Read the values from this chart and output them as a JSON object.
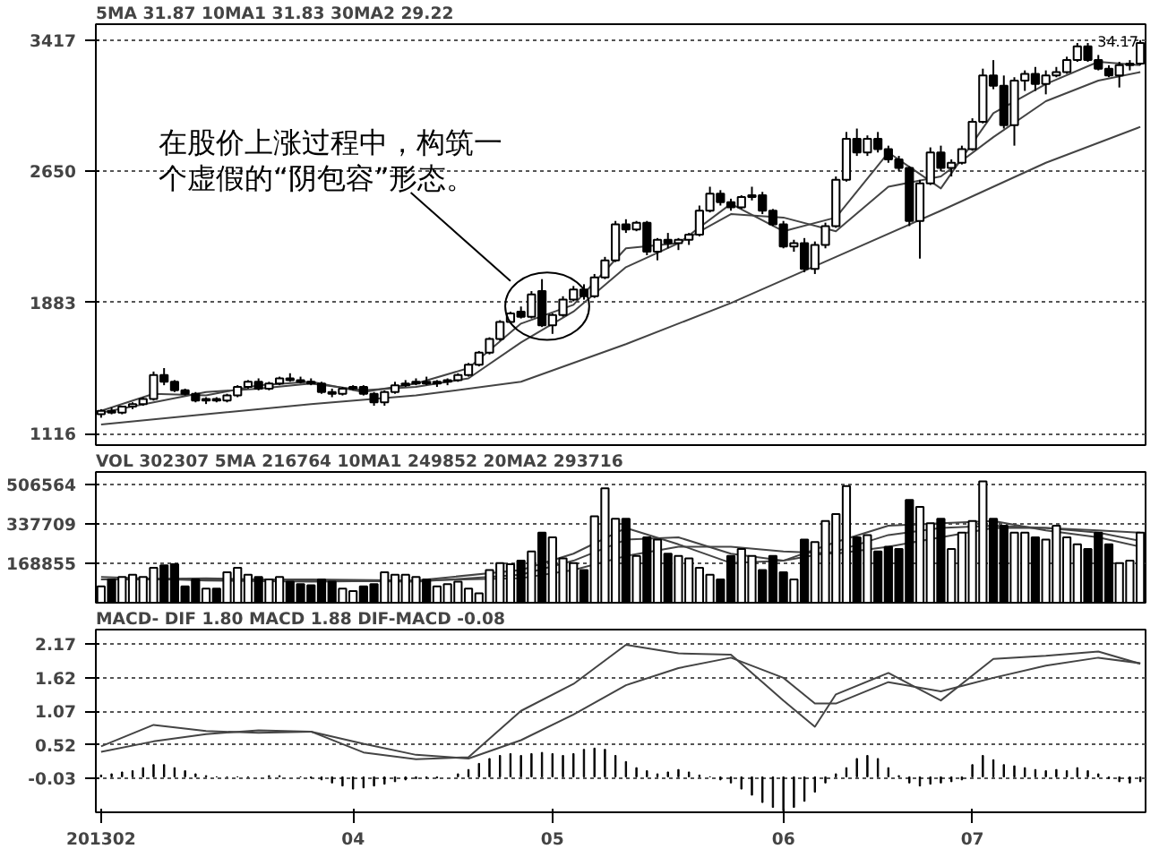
{
  "chart_data": [
    {
      "type": "candlestick",
      "title": "5MA 31.87  10MA1 31.83  30MA2 29.22",
      "categories": [
        "201302",
        null,
        null,
        null,
        null,
        null,
        null,
        null,
        null,
        null,
        null,
        null,
        null,
        null,
        null,
        null,
        null,
        null,
        null,
        null,
        null,
        null,
        null,
        null,
        "04",
        null,
        null,
        null,
        null,
        null,
        null,
        null,
        null,
        null,
        null,
        null,
        null,
        null,
        null,
        null,
        null,
        null,
        null,
        "05",
        null,
        null,
        null,
        null,
        null,
        null,
        null,
        null,
        null,
        null,
        null,
        null,
        null,
        null,
        null,
        null,
        null,
        null,
        null,
        null,
        null,
        "06",
        null,
        null,
        null,
        null,
        null,
        null,
        null,
        null,
        null,
        null,
        null,
        null,
        null,
        null,
        null,
        null,
        null,
        "07",
        null,
        null,
        null,
        null,
        null,
        null,
        null,
        null,
        null,
        null,
        null,
        null,
        null,
        null,
        null,
        null
      ],
      "ylim": [
        1050,
        3510
      ],
      "yticks": [
        1116,
        1883,
        2650,
        3417
      ],
      "grid": "y",
      "tick_labels": "y",
      "ohlc": [
        [
          1230,
          1260,
          1210,
          1250
        ],
        [
          1250,
          1270,
          1230,
          1240
        ],
        [
          1240,
          1280,
          1230,
          1275
        ],
        [
          1275,
          1300,
          1260,
          1290
        ],
        [
          1290,
          1330,
          1280,
          1320
        ],
        [
          1320,
          1480,
          1310,
          1460
        ],
        [
          1460,
          1500,
          1400,
          1420
        ],
        [
          1420,
          1430,
          1360,
          1370
        ],
        [
          1370,
          1380,
          1340,
          1350
        ],
        [
          1350,
          1360,
          1300,
          1310
        ],
        [
          1310,
          1330,
          1290,
          1320
        ],
        [
          1320,
          1330,
          1300,
          1310
        ],
        [
          1310,
          1350,
          1300,
          1340
        ],
        [
          1340,
          1400,
          1330,
          1390
        ],
        [
          1390,
          1430,
          1380,
          1420
        ],
        [
          1420,
          1440,
          1370,
          1380
        ],
        [
          1380,
          1420,
          1370,
          1410
        ],
        [
          1410,
          1450,
          1400,
          1440
        ],
        [
          1440,
          1470,
          1420,
          1430
        ],
        [
          1430,
          1450,
          1410,
          1420
        ],
        [
          1420,
          1440,
          1400,
          1410
        ],
        [
          1410,
          1420,
          1350,
          1360
        ],
        [
          1360,
          1380,
          1330,
          1350
        ],
        [
          1350,
          1390,
          1340,
          1380
        ],
        [
          1380,
          1400,
          1370,
          1390
        ],
        [
          1390,
          1400,
          1340,
          1350
        ],
        [
          1350,
          1360,
          1280,
          1300
        ],
        [
          1300,
          1370,
          1280,
          1360
        ],
        [
          1360,
          1420,
          1350,
          1400
        ],
        [
          1400,
          1430,
          1390,
          1410
        ],
        [
          1410,
          1440,
          1400,
          1420
        ],
        [
          1420,
          1450,
          1400,
          1410
        ],
        [
          1410,
          1430,
          1390,
          1420
        ],
        [
          1420,
          1440,
          1400,
          1430
        ],
        [
          1430,
          1470,
          1420,
          1460
        ],
        [
          1460,
          1530,
          1450,
          1520
        ],
        [
          1520,
          1600,
          1510,
          1590
        ],
        [
          1590,
          1680,
          1580,
          1670
        ],
        [
          1670,
          1780,
          1660,
          1770
        ],
        [
          1770,
          1830,
          1760,
          1820
        ],
        [
          1830,
          1860,
          1790,
          1800
        ],
        [
          1800,
          1950,
          1790,
          1930
        ],
        [
          1950,
          2020,
          1740,
          1750
        ],
        [
          1750,
          1820,
          1700,
          1810
        ],
        [
          1810,
          1920,
          1800,
          1900
        ],
        [
          1900,
          1980,
          1890,
          1960
        ],
        [
          1960,
          1990,
          1900,
          1920
        ],
        [
          1920,
          2050,
          1910,
          2030
        ],
        [
          2030,
          2150,
          2020,
          2130
        ],
        [
          2130,
          2360,
          2120,
          2340
        ],
        [
          2340,
          2370,
          2290,
          2310
        ],
        [
          2310,
          2360,
          2300,
          2350
        ],
        [
          2350,
          2360,
          2160,
          2180
        ],
        [
          2180,
          2260,
          2130,
          2250
        ],
        [
          2250,
          2290,
          2200,
          2230
        ],
        [
          2230,
          2260,
          2190,
          2250
        ],
        [
          2250,
          2290,
          2220,
          2280
        ],
        [
          2280,
          2450,
          2270,
          2420
        ],
        [
          2420,
          2560,
          2410,
          2520
        ],
        [
          2520,
          2540,
          2450,
          2470
        ],
        [
          2470,
          2490,
          2420,
          2440
        ],
        [
          2440,
          2510,
          2430,
          2500
        ],
        [
          2500,
          2560,
          2480,
          2510
        ],
        [
          2510,
          2530,
          2400,
          2420
        ],
        [
          2420,
          2430,
          2330,
          2340
        ],
        [
          2340,
          2360,
          2200,
          2210
        ],
        [
          2210,
          2250,
          2180,
          2230
        ],
        [
          2230,
          2260,
          2060,
          2080
        ],
        [
          2080,
          2240,
          2050,
          2220
        ],
        [
          2220,
          2350,
          2200,
          2330
        ],
        [
          2330,
          2620,
          2320,
          2600
        ],
        [
          2600,
          2880,
          2590,
          2840
        ],
        [
          2840,
          2900,
          2740,
          2760
        ],
        [
          2760,
          2860,
          2740,
          2840
        ],
        [
          2840,
          2880,
          2760,
          2780
        ],
        [
          2780,
          2800,
          2700,
          2720
        ],
        [
          2720,
          2740,
          2650,
          2670
        ],
        [
          2670,
          2680,
          2330,
          2360
        ],
        [
          2360,
          2600,
          2140,
          2580
        ],
        [
          2580,
          2790,
          2570,
          2760
        ],
        [
          2760,
          2800,
          2650,
          2670
        ],
        [
          2670,
          2720,
          2620,
          2700
        ],
        [
          2700,
          2800,
          2690,
          2780
        ],
        [
          2780,
          2960,
          2770,
          2940
        ],
        [
          2940,
          3250,
          2930,
          3210
        ],
        [
          3210,
          3300,
          3130,
          3150
        ],
        [
          3150,
          3210,
          2900,
          2920
        ],
        [
          2920,
          3200,
          2800,
          3180
        ],
        [
          3180,
          3240,
          3120,
          3220
        ],
        [
          3220,
          3260,
          3120,
          3160
        ],
        [
          3160,
          3240,
          3100,
          3210
        ],
        [
          3210,
          3260,
          3200,
          3230
        ],
        [
          3230,
          3320,
          3220,
          3300
        ],
        [
          3300,
          3400,
          3290,
          3380
        ],
        [
          3380,
          3400,
          3290,
          3300
        ],
        [
          3300,
          3330,
          3240,
          3250
        ],
        [
          3250,
          3270,
          3200,
          3210
        ],
        [
          3210,
          3290,
          3140,
          3270
        ],
        [
          3270,
          3300,
          3240,
          3280
        ],
        [
          3280,
          3417,
          3270,
          3400
        ]
      ],
      "colors": [
        "#ffffff",
        "#000000",
        "#ffffff",
        "#ffffff",
        "#ffffff",
        "#ffffff",
        "#000000",
        "#000000",
        "#000000",
        "#000000",
        "#ffffff",
        "#000000",
        "#ffffff",
        "#ffffff",
        "#ffffff",
        "#000000",
        "#ffffff",
        "#ffffff",
        "#000000",
        "#000000",
        "#000000",
        "#000000",
        "#000000",
        "#ffffff",
        "#ffffff",
        "#000000",
        "#000000",
        "#ffffff",
        "#ffffff",
        "#ffffff",
        "#ffffff",
        "#000000",
        "#ffffff",
        "#ffffff",
        "#ffffff",
        "#ffffff",
        "#ffffff",
        "#ffffff",
        "#ffffff",
        "#ffffff",
        "#000000",
        "#ffffff",
        "#000000",
        "#ffffff",
        "#ffffff",
        "#ffffff",
        "#000000",
        "#ffffff",
        "#ffffff",
        "#ffffff",
        "#000000",
        "#ffffff",
        "#000000",
        "#ffffff",
        "#000000",
        "#ffffff",
        "#ffffff",
        "#ffffff",
        "#ffffff",
        "#000000",
        "#000000",
        "#ffffff",
        "#ffffff",
        "#000000",
        "#000000",
        "#000000",
        "#ffffff",
        "#000000",
        "#ffffff",
        "#ffffff",
        "#ffffff",
        "#ffffff",
        "#000000",
        "#ffffff",
        "#000000",
        "#000000",
        "#000000",
        "#000000",
        "#ffffff",
        "#ffffff",
        "#000000",
        "#ffffff",
        "#ffffff",
        "#ffffff",
        "#ffffff",
        "#000000",
        "#000000",
        "#ffffff",
        "#ffffff",
        "#000000",
        "#ffffff",
        "#ffffff",
        "#ffffff",
        "#ffffff",
        "#000000",
        "#000000",
        "#000000",
        "#ffffff",
        "#ffffff",
        "#ffffff"
      ],
      "series": [
        {
          "type": "line",
          "color": "#444444",
          "values": [
            1250,
            null,
            null,
            null,
            null,
            1350,
            null,
            null,
            null,
            null,
            1340,
            null,
            null,
            null,
            null,
            1400,
            null,
            null,
            null,
            null,
            1420,
            null,
            null,
            null,
            null,
            1360,
            null,
            null,
            null,
            null,
            1410,
            null,
            null,
            null,
            null,
            1500,
            null,
            null,
            null,
            null,
            1760,
            null,
            null,
            null,
            null,
            1870,
            null,
            null,
            null,
            null,
            2200,
            null,
            null,
            null,
            null,
            2230,
            null,
            null,
            null,
            null,
            2460,
            null,
            null,
            null,
            null,
            2300,
            null,
            null,
            null,
            null,
            2380,
            null,
            null,
            null,
            null,
            2760,
            null,
            null,
            null,
            null,
            2550,
            null,
            null,
            null,
            null,
            2990,
            null,
            null,
            null,
            null,
            3160,
            null,
            null,
            null,
            null,
            3290,
            null,
            null,
            null,
            3270
          ]
        },
        {
          "type": "line",
          "color": "#444444",
          "values": [
            1240,
            null,
            null,
            null,
            null,
            1300,
            null,
            null,
            null,
            null,
            1360,
            null,
            null,
            null,
            null,
            1380,
            null,
            null,
            null,
            null,
            1410,
            null,
            null,
            null,
            null,
            1370,
            null,
            null,
            null,
            null,
            1390,
            null,
            null,
            null,
            null,
            1440,
            null,
            null,
            null,
            null,
            1650,
            null,
            null,
            null,
            null,
            1830,
            null,
            null,
            null,
            null,
            2090,
            null,
            null,
            null,
            null,
            2230,
            null,
            null,
            null,
            null,
            2400,
            null,
            null,
            null,
            null,
            2380,
            null,
            null,
            null,
            null,
            2300,
            null,
            null,
            null,
            null,
            2560,
            null,
            null,
            null,
            null,
            2620,
            null,
            null,
            null,
            null,
            2850,
            null,
            null,
            null,
            null,
            3060,
            null,
            null,
            null,
            null,
            3180,
            null,
            null,
            null,
            3230
          ]
        },
        {
          "type": "line",
          "color": "#444444",
          "values": [
            1170,
            null,
            null,
            null,
            null,
            null,
            null,
            null,
            null,
            null,
            1230,
            null,
            null,
            null,
            null,
            null,
            null,
            null,
            null,
            null,
            1290,
            null,
            null,
            null,
            null,
            null,
            null,
            null,
            null,
            null,
            1340,
            null,
            null,
            null,
            null,
            null,
            null,
            null,
            null,
            null,
            1420,
            null,
            null,
            null,
            null,
            null,
            null,
            null,
            null,
            null,
            1640,
            null,
            null,
            null,
            null,
            null,
            null,
            null,
            null,
            null,
            1880,
            null,
            null,
            null,
            null,
            null,
            null,
            null,
            null,
            null,
            2150,
            null,
            null,
            null,
            null,
            null,
            null,
            null,
            null,
            null,
            2420,
            null,
            null,
            null,
            null,
            null,
            null,
            null,
            null,
            null,
            2700,
            null,
            null,
            null,
            null,
            null,
            null,
            null,
            null,
            2910
          ]
        }
      ],
      "annotations": [
        "34.17",
        "在股价上涨过程中，构筑一个虚假的“阴包容”形态。"
      ]
    },
    {
      "type": "bar",
      "title": "VOL 302307  5MA 216764  10MA1 249852  20MA2 293716",
      "categories": [
        "201302",
        null,
        null,
        null,
        null,
        null,
        null,
        null,
        null,
        null,
        null,
        null,
        null,
        null,
        null,
        null,
        null,
        null,
        null,
        null,
        null,
        null,
        null,
        null,
        "04",
        null,
        null,
        null,
        null,
        null,
        null,
        null,
        null,
        null,
        null,
        null,
        null,
        null,
        null,
        null,
        null,
        null,
        null,
        "05",
        null,
        null,
        null,
        null,
        null,
        null,
        null,
        null,
        null,
        null,
        null,
        null,
        null,
        null,
        null,
        null,
        null,
        null,
        null,
        null,
        null,
        "06",
        null,
        null,
        null,
        null,
        null,
        null,
        null,
        null,
        null,
        null,
        null,
        null,
        null,
        null,
        null,
        null,
        null,
        "07",
        null,
        null,
        null,
        null,
        null,
        null,
        null,
        null,
        null,
        null,
        null,
        null,
        null,
        null,
        null,
        null
      ],
      "ylim": [
        0,
        560000
      ],
      "yticks": [
        168855,
        337709,
        506564
      ],
      "grid": "y",
      "tick_labels": "y",
      "values": [
        70000,
        100000,
        110000,
        120000,
        110000,
        150000,
        160000,
        165000,
        70000,
        100000,
        60000,
        60000,
        130000,
        150000,
        120000,
        110000,
        100000,
        110000,
        90000,
        80000,
        75000,
        100000,
        90000,
        60000,
        50000,
        70000,
        80000,
        130000,
        120000,
        120000,
        110000,
        100000,
        70000,
        80000,
        90000,
        60000,
        40000,
        140000,
        170000,
        165000,
        180000,
        220000,
        300000,
        280000,
        190000,
        170000,
        140000,
        370000,
        490000,
        360000,
        360000,
        200000,
        280000,
        270000,
        210000,
        200000,
        190000,
        150000,
        120000,
        100000,
        200000,
        230000,
        200000,
        140000,
        200000,
        130000,
        100000,
        270000,
        260000,
        350000,
        380000,
        500000,
        280000,
        290000,
        220000,
        240000,
        230000,
        440000,
        410000,
        340000,
        360000,
        230000,
        300000,
        350000,
        520000,
        360000,
        330000,
        300000,
        300000,
        280000,
        270000,
        330000,
        280000,
        250000,
        230000,
        300000,
        250000,
        170000,
        180000,
        300000
      ],
      "colors": [
        "#ffffff",
        "#000000",
        "#ffffff",
        "#ffffff",
        "#ffffff",
        "#ffffff",
        "#000000",
        "#000000",
        "#000000",
        "#000000",
        "#ffffff",
        "#000000",
        "#ffffff",
        "#ffffff",
        "#ffffff",
        "#000000",
        "#ffffff",
        "#ffffff",
        "#000000",
        "#000000",
        "#000000",
        "#000000",
        "#000000",
        "#ffffff",
        "#ffffff",
        "#000000",
        "#000000",
        "#ffffff",
        "#ffffff",
        "#ffffff",
        "#ffffff",
        "#000000",
        "#ffffff",
        "#ffffff",
        "#ffffff",
        "#ffffff",
        "#ffffff",
        "#ffffff",
        "#ffffff",
        "#ffffff",
        "#000000",
        "#ffffff",
        "#000000",
        "#ffffff",
        "#ffffff",
        "#ffffff",
        "#000000",
        "#ffffff",
        "#ffffff",
        "#ffffff",
        "#000000",
        "#ffffff",
        "#000000",
        "#ffffff",
        "#000000",
        "#ffffff",
        "#ffffff",
        "#ffffff",
        "#ffffff",
        "#000000",
        "#000000",
        "#ffffff",
        "#ffffff",
        "#000000",
        "#000000",
        "#000000",
        "#ffffff",
        "#000000",
        "#ffffff",
        "#ffffff",
        "#ffffff",
        "#ffffff",
        "#000000",
        "#ffffff",
        "#000000",
        "#000000",
        "#000000",
        "#000000",
        "#ffffff",
        "#ffffff",
        "#000000",
        "#ffffff",
        "#ffffff",
        "#ffffff",
        "#ffffff",
        "#000000",
        "#000000",
        "#ffffff",
        "#ffffff",
        "#000000",
        "#ffffff",
        "#ffffff",
        "#ffffff",
        "#ffffff",
        "#000000",
        "#000000",
        "#000000",
        "#ffffff",
        "#ffffff",
        "#ffffff"
      ],
      "series": [
        {
          "type": "line",
          "color": "#444444",
          "values": [
            110000,
            null,
            null,
            null,
            null,
            null,
            null,
            null,
            null,
            null,
            95000,
            null,
            null,
            null,
            null,
            null,
            null,
            null,
            null,
            null,
            90000,
            null,
            null,
            null,
            null,
            null,
            null,
            null,
            null,
            null,
            95000,
            null,
            null,
            null,
            null,
            null,
            null,
            null,
            null,
            null,
            140000,
            null,
            null,
            null,
            null,
            210000,
            null,
            null,
            null,
            null,
            320000,
            null,
            null,
            null,
            null,
            250000,
            null,
            null,
            null,
            null,
            170000,
            null,
            null,
            null,
            null,
            180000,
            null,
            null,
            null,
            null,
            260000,
            null,
            null,
            null,
            null,
            330000,
            null,
            null,
            null,
            null,
            340000,
            null,
            null,
            null,
            null,
            350000,
            null,
            null,
            null,
            null,
            310000,
            null,
            null,
            null,
            null,
            280000,
            null,
            null,
            null,
            240000
          ]
        },
        {
          "type": "line",
          "color": "#444444",
          "values": [
            100000,
            null,
            null,
            null,
            null,
            null,
            null,
            null,
            null,
            null,
            105000,
            null,
            null,
            null,
            null,
            null,
            null,
            null,
            null,
            null,
            95000,
            null,
            null,
            null,
            null,
            null,
            null,
            null,
            null,
            null,
            90000,
            null,
            null,
            null,
            null,
            null,
            null,
            null,
            null,
            null,
            120000,
            null,
            null,
            null,
            null,
            180000,
            null,
            null,
            null,
            null,
            270000,
            null,
            null,
            null,
            null,
            280000,
            null,
            null,
            null,
            null,
            210000,
            null,
            null,
            null,
            null,
            180000,
            null,
            null,
            null,
            null,
            220000,
            null,
            null,
            null,
            null,
            290000,
            null,
            null,
            null,
            null,
            320000,
            null,
            null,
            null,
            null,
            330000,
            null,
            null,
            null,
            null,
            320000,
            null,
            null,
            null,
            null,
            300000,
            null,
            null,
            null,
            265000
          ]
        },
        {
          "type": "line",
          "color": "#444444",
          "values": [
            100000,
            null,
            null,
            null,
            null,
            null,
            null,
            null,
            null,
            null,
            100000,
            null,
            null,
            null,
            null,
            null,
            null,
            null,
            null,
            null,
            100000,
            null,
            null,
            null,
            null,
            null,
            null,
            null,
            null,
            null,
            95000,
            null,
            null,
            null,
            null,
            null,
            null,
            null,
            null,
            null,
            105000,
            null,
            null,
            null,
            null,
            140000,
            null,
            null,
            null,
            null,
            200000,
            null,
            null,
            null,
            null,
            240000,
            null,
            null,
            null,
            null,
            240000,
            null,
            null,
            null,
            null,
            220000,
            null,
            null,
            null,
            null,
            210000,
            null,
            null,
            null,
            null,
            240000,
            null,
            null,
            null,
            null,
            280000,
            null,
            null,
            null,
            null,
            320000,
            null,
            null,
            null,
            null,
            320000,
            null,
            null,
            null,
            null,
            310000,
            null,
            null,
            null,
            300000
          ]
        }
      ]
    },
    {
      "type": "line",
      "title": "MACD- DIF 1.80  MACD 1.88  DIF-MACD -0.08",
      "categories": [
        "201302",
        null,
        null,
        null,
        null,
        null,
        null,
        null,
        null,
        null,
        null,
        null,
        null,
        null,
        null,
        null,
        null,
        null,
        null,
        null,
        null,
        null,
        null,
        null,
        "04",
        null,
        null,
        null,
        null,
        null,
        null,
        null,
        null,
        null,
        null,
        null,
        null,
        null,
        null,
        null,
        null,
        null,
        null,
        "05",
        null,
        null,
        null,
        null,
        null,
        null,
        null,
        null,
        null,
        null,
        null,
        null,
        null,
        null,
        null,
        null,
        null,
        null,
        null,
        null,
        null,
        "06",
        null,
        null,
        null,
        null,
        null,
        null,
        null,
        null,
        null,
        null,
        null,
        null,
        null,
        null,
        null,
        null,
        null,
        "07",
        null,
        null,
        null,
        null,
        null,
        null,
        null,
        null,
        null,
        null,
        null,
        null,
        null,
        null,
        null,
        null
      ],
      "ylim": [
        -0.58,
        2.41
      ],
      "yticks": [
        -0.03,
        0.52,
        1.07,
        1.62,
        2.17
      ],
      "grid": "y",
      "series": [
        {
          "type": "bar",
          "color": "#000000",
          "values": [
            0.03,
            0.05,
            0.08,
            0.1,
            0.15,
            0.2,
            0.2,
            0.15,
            0.1,
            0.05,
            0.02,
            0,
            0,
            0,
            0,
            null,
            0.02,
            0.02,
            null,
            0,
            -0.02,
            -0.05,
            -0.1,
            -0.15,
            -0.2,
            -0.18,
            -0.15,
            -0.12,
            -0.08,
            -0.05,
            -0.03,
            -0.02,
            -0.02,
            null,
            0.05,
            0.12,
            0.22,
            0.3,
            0.35,
            0.38,
            0.35,
            0.38,
            0.4,
            0.38,
            0.35,
            0.38,
            0.45,
            0.47,
            0.45,
            0.35,
            0.25,
            0.15,
            0.1,
            0.05,
            0.08,
            0.12,
            0.08,
            0.03,
            0,
            -0.05,
            -0.1,
            -0.2,
            -0.3,
            -0.42,
            -0.5,
            -0.56,
            -0.5,
            -0.4,
            -0.25,
            -0.1,
            0.05,
            0.15,
            0.3,
            0.35,
            0.3,
            0.15,
            0.02,
            -0.1,
            -0.15,
            -0.12,
            -0.1,
            -0.08,
            -0.05,
            0.2,
            0.35,
            0.28,
            0.2,
            0.18,
            0.15,
            0.12,
            0.1,
            0.12,
            0.1,
            0.15,
            0.1,
            0.05,
            -0.03,
            -0.08,
            -0.1,
            -0.08
          ]
        },
        {
          "type": "line",
          "color": "#444444",
          "values": [
            0.5,
            null,
            null,
            null,
            null,
            0.85,
            null,
            null,
            null,
            null,
            0.75,
            null,
            null,
            null,
            null,
            0.72,
            null,
            null,
            null,
            null,
            0.74,
            null,
            null,
            null,
            null,
            0.4,
            null,
            null,
            null,
            null,
            0.29,
            null,
            null,
            null,
            null,
            0.32,
            null,
            null,
            null,
            null,
            1.08,
            null,
            null,
            null,
            null,
            1.52,
            null,
            null,
            null,
            null,
            2.16,
            null,
            null,
            null,
            null,
            2.02,
            null,
            null,
            null,
            null,
            2.0,
            null,
            null,
            null,
            null,
            1.25,
            null,
            null,
            0.82,
            null,
            1.35,
            null,
            null,
            null,
            null,
            1.7,
            null,
            null,
            null,
            null,
            1.25,
            null,
            null,
            null,
            null,
            1.93,
            null,
            null,
            null,
            null,
            1.98,
            null,
            null,
            null,
            null,
            2.05,
            null,
            null,
            null,
            1.85
          ]
        },
        {
          "type": "line",
          "color": "#444444",
          "values": [
            0.41,
            null,
            null,
            null,
            null,
            0.58,
            null,
            null,
            null,
            null,
            0.7,
            null,
            null,
            null,
            null,
            0.76,
            null,
            null,
            null,
            null,
            0.74,
            null,
            null,
            null,
            null,
            0.54,
            null,
            null,
            null,
            null,
            0.36,
            null,
            null,
            null,
            null,
            0.3,
            null,
            null,
            null,
            null,
            0.6,
            null,
            null,
            null,
            null,
            1.02,
            null,
            null,
            null,
            null,
            1.5,
            null,
            null,
            null,
            null,
            1.78,
            null,
            null,
            null,
            null,
            1.95,
            null,
            null,
            null,
            null,
            1.62,
            null,
            null,
            1.2,
            null,
            1.2,
            null,
            null,
            null,
            null,
            1.55,
            null,
            null,
            null,
            null,
            1.4,
            null,
            null,
            null,
            null,
            1.62,
            null,
            null,
            null,
            null,
            1.82,
            null,
            null,
            null,
            null,
            1.95,
            null,
            null,
            null,
            1.86
          ]
        }
      ]
    }
  ]
}
